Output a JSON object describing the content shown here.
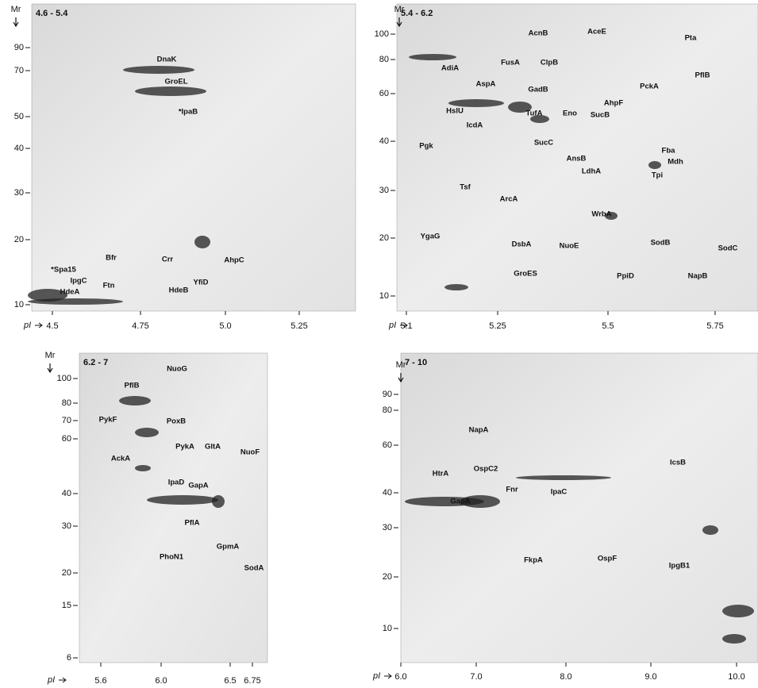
{
  "panels": [
    {
      "range": "4.6 - 5.4",
      "mr_label": "Mr",
      "pi_label": "pI",
      "mr_ticks": [
        "90",
        "70",
        "50",
        "40",
        "30",
        "20",
        "10"
      ],
      "pi_ticks": [
        "4.5",
        "4.75",
        "5.0",
        "5.25"
      ],
      "proteins": [
        "DnaK",
        "GroEL",
        "*IpaB",
        "AhpC",
        "Bfr",
        "*Spa15",
        "IpgC",
        "Ftn",
        "Crr",
        "HdeA",
        "HdeB",
        "YfiD"
      ]
    },
    {
      "range": "5.4 - 6.2",
      "mr_label": "Mr",
      "pi_label": "pI",
      "mr_ticks": [
        "100",
        "80",
        "60",
        "40",
        "30",
        "20",
        "10"
      ],
      "pi_ticks": [
        "5.1",
        "5.25",
        "5.5",
        "5.75"
      ],
      "proteins": [
        "AcnB",
        "AceE",
        "Pta",
        "FusA",
        "ClpB",
        "AdiA",
        "PflB",
        "PckA",
        "AspA",
        "GadB",
        "HslU",
        "AhpF",
        "TufA",
        "Eno",
        "SucB",
        "IcdA",
        "SucC",
        "Pgk",
        "Fba",
        "AnsB",
        "Mdh",
        "LdhA",
        "Tsf",
        "ArcA",
        "Tpi",
        "WrbA",
        "YgaG",
        "DsbA",
        "NuoE",
        "SodB",
        "SodC",
        "PpiD",
        "NapB",
        "GroES"
      ]
    },
    {
      "range": "6.2 - 7",
      "mr_label": "Mr",
      "pi_label": "pI",
      "mr_ticks": [
        "100",
        "80",
        "70",
        "60",
        "40",
        "30",
        "20",
        "15",
        "6"
      ],
      "pi_ticks": [
        "5.6",
        "6.0",
        "6.5",
        "6.75"
      ],
      "proteins": [
        "NuoG",
        "PflB",
        "PykF",
        "PoxB",
        "PykA",
        "GltA",
        "AckA",
        "NuoF",
        "IpaD",
        "GapA",
        "PflA",
        "GpmA",
        "PhoN1",
        "SodA"
      ]
    },
    {
      "range": "7 - 10",
      "mr_label": "Mr",
      "pi_label": "pI",
      "mr_ticks": [
        "90",
        "80",
        "60",
        "40",
        "30",
        "20",
        "10"
      ],
      "pi_ticks": [
        "6.0",
        "7.0",
        "8.0",
        "9.0",
        "10.0"
      ],
      "proteins": [
        "NapA",
        "OspC2",
        "HtrA",
        "Fnr",
        "IpaC",
        "IcsB",
        "GapA",
        "FkpA",
        "OspF",
        "IpgB1"
      ]
    }
  ]
}
